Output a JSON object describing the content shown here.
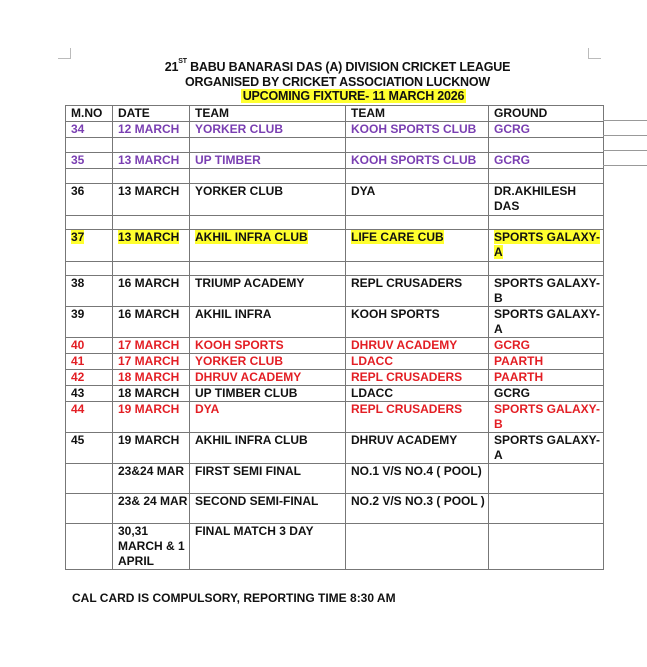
{
  "document": {
    "title_line1_prefix": "21",
    "title_line1_sup": "ST",
    "title_line1_rest": " BABU BANARASI DAS (A) DIVISION CRICKET LEAGUE",
    "title_line2": "ORGANISED BY CRICKET ASSOCIATION LUCKNOW",
    "title_line3": "UPCOMING FIXTURE-  11 MARCH  2026",
    "footer": "CAL CARD IS COMPULSORY, REPORTING TIME 8:30 AM"
  },
  "colors": {
    "purple": "#7a3fb2",
    "red": "#e31e24",
    "black": "#111111",
    "highlight": "#ffff2e"
  },
  "table": {
    "headers": [
      "M.NO",
      "DATE",
      "TEAM",
      "TEAM",
      "GROUND"
    ],
    "rows": [
      {
        "cells": [
          "34",
          "12 MARCH",
          "YORKER CLUB",
          "KOOH SPORTS CLUB",
          "GCRG"
        ],
        "color": "purple"
      },
      {
        "cells": [
          "",
          "",
          "",
          "",
          ""
        ]
      },
      {
        "cells": [
          "35",
          "13 MARCH",
          "UP TIMBER",
          "KOOH SPORTS CLUB",
          "GCRG"
        ],
        "color": "purple"
      },
      {
        "cells": [
          "",
          "",
          "",
          "",
          ""
        ]
      },
      {
        "cells": [
          "36",
          "13 MARCH",
          "YORKER CLUB",
          "DYA",
          "DR.AKHILESH DAS"
        ],
        "color": "black"
      },
      {
        "cells": [
          "",
          "",
          "",
          "",
          ""
        ]
      },
      {
        "cells": [
          "37",
          "13 MARCH",
          "AKHIL INFRA CLUB",
          "LIFE CARE CUB",
          "SPORTS GALAXY-A"
        ],
        "color": "black",
        "highlight": true
      },
      {
        "cells": [
          "",
          "",
          "",
          "",
          ""
        ]
      },
      {
        "cells": [
          "38",
          "16 MARCH",
          "TRIUMP ACADEMY",
          "REPL CRUSADERS",
          "SPORTS GALAXY-B"
        ],
        "color": "black"
      },
      {
        "cells": [
          "39",
          "16 MARCH",
          "AKHIL INFRA",
          "KOOH SPORTS",
          "SPORTS GALAXY-A"
        ],
        "color": "black"
      },
      {
        "cells": [
          "40",
          "17 MARCH",
          "KOOH SPORTS",
          "DHRUV ACADEMY",
          "GCRG"
        ],
        "color": "red"
      },
      {
        "cells": [
          "41",
          "17 MARCH",
          "YORKER CLUB",
          "LDACC",
          "PAARTH"
        ],
        "color": "red"
      },
      {
        "cells": [
          "42",
          "18 MARCH",
          "DHRUV ACADEMY",
          "REPL CRUSADERS",
          "PAARTH"
        ],
        "color": "red"
      },
      {
        "cells": [
          "43",
          "18 MARCH",
          "UP TIMBER CLUB",
          "LDACC",
          "GCRG"
        ],
        "color": "black"
      },
      {
        "cells": [
          "44",
          "19 MARCH",
          "DYA",
          "REPL CRUSADERS",
          "SPORTS GALAXY-B"
        ],
        "color": "red"
      },
      {
        "cells": [
          "45",
          "19 MARCH",
          "AKHIL INFRA CLUB",
          "DHRUV ACADEMY",
          "SPORTS GALAXY-A"
        ],
        "color": "black"
      },
      {
        "cells": [
          "",
          "23&24 MAR",
          "FIRST SEMI FINAL",
          "NO.1  V/S NO.4 ( POOL)",
          ""
        ],
        "color": "black"
      },
      {
        "cells": [
          "",
          "23& 24 MAR",
          "SECOND SEMI-FINAL",
          "NO.2   V/S  NO.3 ( POOL )",
          ""
        ],
        "color": "black"
      },
      {
        "cells": [
          "",
          "30,31 MARCH & 1 APRIL",
          "FINAL MATCH 3 DAY",
          "",
          ""
        ],
        "color": "black"
      }
    ]
  }
}
